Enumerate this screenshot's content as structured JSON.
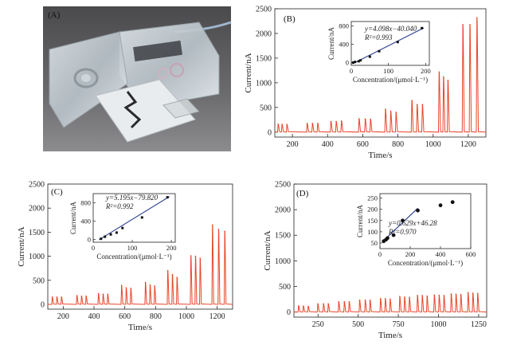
{
  "figure": {
    "panel_a_label": "(A)",
    "photo_icon": "flow-cell-device-photo"
  },
  "colors": {
    "trace": "#e8452a",
    "fit": "#2a3f8f",
    "points": "#111111"
  },
  "chart_data": [
    {
      "panel": "(B)",
      "type": "line",
      "xlabel": "Time/s",
      "ylabel": "Current/nA",
      "xlim": [
        100,
        1300
      ],
      "ylim": [
        -100,
        2500
      ],
      "xticks": [
        200,
        400,
        600,
        800,
        1000,
        1200
      ],
      "yticks": [
        0,
        500,
        1000,
        1500,
        2000,
        2500
      ],
      "peaks": [
        {
          "t": 120,
          "h": 160
        },
        {
          "t": 142,
          "h": 155
        },
        {
          "t": 170,
          "h": 155
        },
        {
          "t": 285,
          "h": 175
        },
        {
          "t": 315,
          "h": 175
        },
        {
          "t": 345,
          "h": 175
        },
        {
          "t": 420,
          "h": 215
        },
        {
          "t": 450,
          "h": 215
        },
        {
          "t": 480,
          "h": 225
        },
        {
          "t": 580,
          "h": 270
        },
        {
          "t": 615,
          "h": 265
        },
        {
          "t": 645,
          "h": 260
        },
        {
          "t": 730,
          "h": 460
        },
        {
          "t": 760,
          "h": 420
        },
        {
          "t": 790,
          "h": 400
        },
        {
          "t": 880,
          "h": 640
        },
        {
          "t": 910,
          "h": 560
        },
        {
          "t": 940,
          "h": 560
        },
        {
          "t": 1035,
          "h": 1220
        },
        {
          "t": 1060,
          "h": 1120
        },
        {
          "t": 1085,
          "h": 1050
        },
        {
          "t": 1170,
          "h": 2180
        },
        {
          "t": 1210,
          "h": 2180
        },
        {
          "t": 1250,
          "h": 2320
        }
      ],
      "inset": {
        "equation": "y=4.098x−40.040",
        "r2": "R²=0.993",
        "xlabel": "Concentration/(μmol·L⁻¹)",
        "ylabel": "Current/nA",
        "xlim": [
          0,
          210
        ],
        "ylim": [
          -60,
          900
        ],
        "xticks": [
          0,
          100,
          200
        ],
        "yticks": [
          0,
          400,
          800
        ],
        "points": [
          [
            5,
            0
          ],
          [
            10,
            15
          ],
          [
            20,
            30
          ],
          [
            25,
            50
          ],
          [
            50,
            130
          ],
          [
            75,
            250
          ],
          [
            125,
            450
          ],
          [
            190,
            755
          ]
        ],
        "fit": [
          [
            5,
            -20
          ],
          [
            195,
            760
          ]
        ]
      }
    },
    {
      "panel": "(C)",
      "type": "line",
      "xlabel": "Time/s",
      "ylabel": "Current/nA",
      "xlim": [
        100,
        1300
      ],
      "ylim": [
        -100,
        2500
      ],
      "xticks": [
        200,
        400,
        600,
        800,
        1000,
        1200
      ],
      "yticks": [
        0,
        500,
        1000,
        1500,
        2000,
        2500
      ],
      "peaks": [
        {
          "t": 130,
          "h": 150
        },
        {
          "t": 160,
          "h": 150
        },
        {
          "t": 190,
          "h": 150
        },
        {
          "t": 290,
          "h": 180
        },
        {
          "t": 320,
          "h": 170
        },
        {
          "t": 350,
          "h": 170
        },
        {
          "t": 430,
          "h": 220
        },
        {
          "t": 460,
          "h": 210
        },
        {
          "t": 490,
          "h": 210
        },
        {
          "t": 580,
          "h": 390
        },
        {
          "t": 610,
          "h": 340
        },
        {
          "t": 640,
          "h": 330
        },
        {
          "t": 735,
          "h": 450
        },
        {
          "t": 765,
          "h": 400
        },
        {
          "t": 795,
          "h": 380
        },
        {
          "t": 880,
          "h": 700
        },
        {
          "t": 910,
          "h": 620
        },
        {
          "t": 940,
          "h": 560
        },
        {
          "t": 1030,
          "h": 1010
        },
        {
          "t": 1060,
          "h": 1000
        },
        {
          "t": 1090,
          "h": 960
        },
        {
          "t": 1170,
          "h": 1650
        },
        {
          "t": 1210,
          "h": 1560
        },
        {
          "t": 1250,
          "h": 1520
        }
      ],
      "inset": {
        "equation": "y=5.195x−79.820",
        "r2": "R²=0.992",
        "xlabel": "Concentration/(μmol·L⁻¹)",
        "ylabel": "Current/nA",
        "xlim": [
          0,
          210
        ],
        "ylim": [
          -60,
          1000
        ],
        "xticks": [
          0,
          100,
          200
        ],
        "yticks": [
          0,
          400,
          800
        ],
        "points": [
          [
            20,
            15
          ],
          [
            30,
            60
          ],
          [
            45,
            110
          ],
          [
            60,
            150
          ],
          [
            75,
            250
          ],
          [
            125,
            480
          ],
          [
            190,
            920
          ]
        ],
        "fit": [
          [
            15,
            -5
          ],
          [
            195,
            935
          ]
        ]
      }
    },
    {
      "panel": "(D)",
      "type": "line",
      "xlabel": "Time/s",
      "ylabel": "Current/nA",
      "xlim": [
        100,
        1300
      ],
      "ylim": [
        -100,
        2500
      ],
      "xticks": [
        250,
        500,
        750,
        1000,
        1250
      ],
      "yticks": [
        0,
        500,
        1000,
        1500,
        2000,
        2500
      ],
      "peaks": [
        {
          "t": 130,
          "h": 120
        },
        {
          "t": 160,
          "h": 115
        },
        {
          "t": 190,
          "h": 110
        },
        {
          "t": 250,
          "h": 160
        },
        {
          "t": 285,
          "h": 160
        },
        {
          "t": 315,
          "h": 160
        },
        {
          "t": 380,
          "h": 200
        },
        {
          "t": 415,
          "h": 200
        },
        {
          "t": 445,
          "h": 200
        },
        {
          "t": 510,
          "h": 230
        },
        {
          "t": 545,
          "h": 230
        },
        {
          "t": 575,
          "h": 230
        },
        {
          "t": 640,
          "h": 260
        },
        {
          "t": 670,
          "h": 260
        },
        {
          "t": 700,
          "h": 250
        },
        {
          "t": 760,
          "h": 300
        },
        {
          "t": 790,
          "h": 290
        },
        {
          "t": 820,
          "h": 285
        },
        {
          "t": 870,
          "h": 320
        },
        {
          "t": 900,
          "h": 320
        },
        {
          "t": 930,
          "h": 310
        },
        {
          "t": 975,
          "h": 330
        },
        {
          "t": 1005,
          "h": 325
        },
        {
          "t": 1035,
          "h": 320
        },
        {
          "t": 1080,
          "h": 350
        },
        {
          "t": 1110,
          "h": 345
        },
        {
          "t": 1140,
          "h": 340
        },
        {
          "t": 1185,
          "h": 375
        },
        {
          "t": 1215,
          "h": 365
        },
        {
          "t": 1245,
          "h": 360
        }
      ],
      "inset": {
        "equation": "y=0.629x+46.28",
        "r2": "R²=0.970",
        "xlabel": "Concentration/(μmol·L⁻¹)",
        "ylabel": "Current/nA",
        "xlim": [
          0,
          600
        ],
        "ylim": [
          25,
          270
        ],
        "xticks": [
          0,
          200,
          400,
          600
        ],
        "yticks": [
          50,
          100,
          150,
          200,
          250
        ],
        "points": [
          [
            25,
            58
          ],
          [
            40,
            65
          ],
          [
            50,
            72
          ],
          [
            90,
            85
          ],
          [
            150,
            150
          ],
          [
            250,
            195
          ],
          [
            400,
            218
          ],
          [
            480,
            232
          ]
        ],
        "fit": [
          [
            20,
            58
          ],
          [
            250,
            205
          ]
        ]
      }
    }
  ]
}
